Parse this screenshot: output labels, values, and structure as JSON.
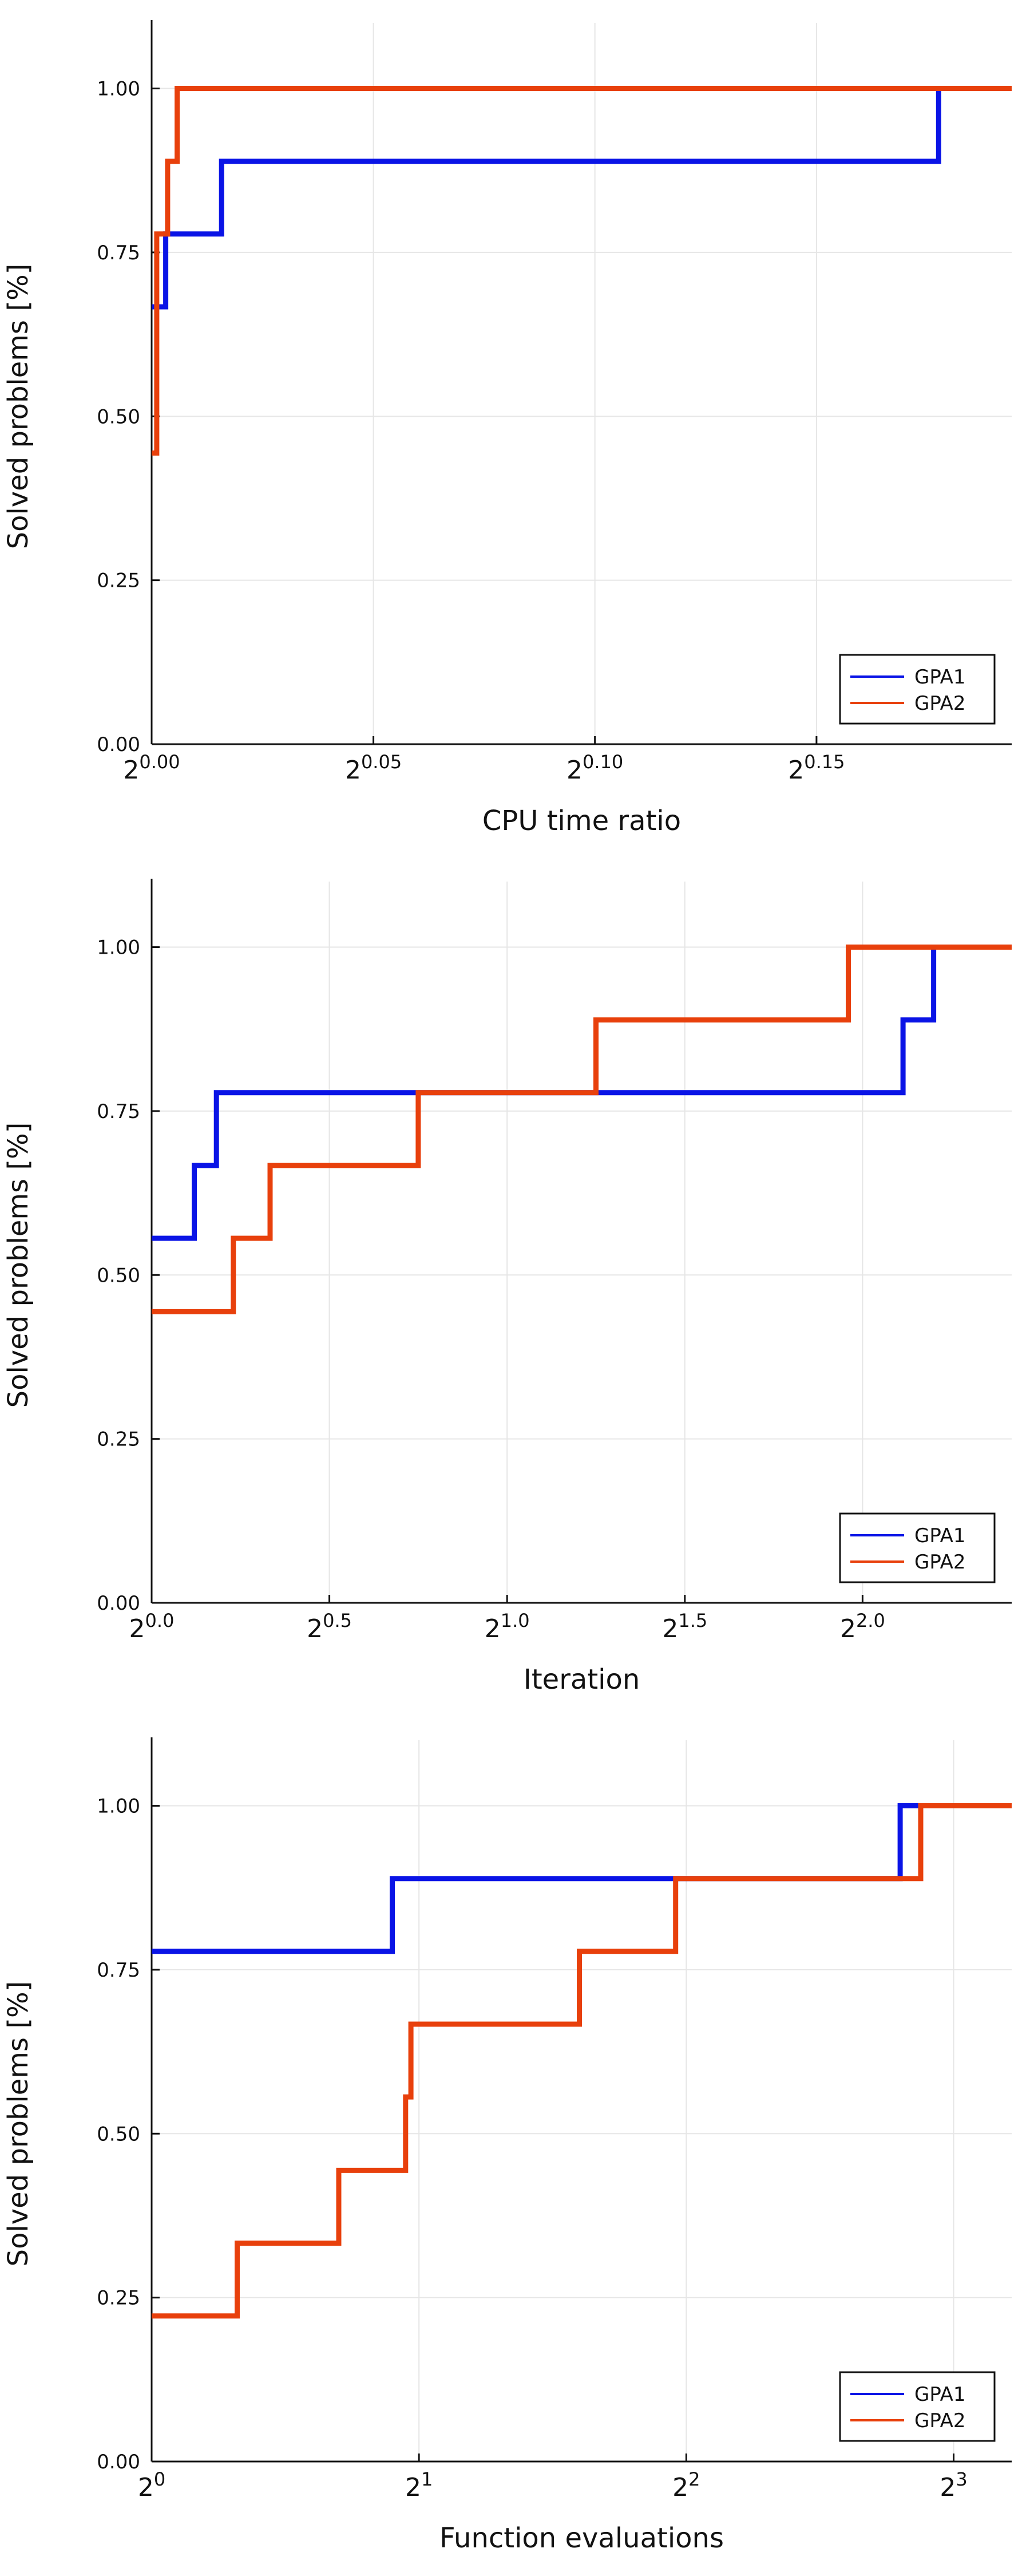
{
  "colors": {
    "GPA1": "#0a14e6",
    "GPA2": "#e8400c",
    "grid": "#e6e6e6",
    "axis": "#111111"
  },
  "chart_data": [
    {
      "type": "line",
      "step": true,
      "xlabel": "CPU time ratio",
      "ylabel": "Solved problems [%]",
      "x_scale": "log2",
      "xlim": [
        1.0,
        1.144
      ],
      "ylim": [
        0,
        1.1
      ],
      "xticks": [
        {
          "value": 1.0,
          "base": "2",
          "exp": "0.00"
        },
        {
          "value": 1.0353,
          "base": "2",
          "exp": "0.05"
        },
        {
          "value": 1.0718,
          "base": "2",
          "exp": "0.10"
        },
        {
          "value": 1.1096,
          "base": "2",
          "exp": "0.15"
        }
      ],
      "yticks": [
        "0.00",
        "0.25",
        "0.50",
        "0.75",
        "1.00"
      ],
      "ytick_values": [
        0,
        0.25,
        0.5,
        0.75,
        1.0
      ],
      "legend_position": "bottom-right",
      "series": [
        {
          "name": "GPA1",
          "x": [
            1.0,
            1.0022,
            1.0041,
            1.011,
            1.131,
            1.144
          ],
          "y": [
            0.667,
            0.778,
            0.778,
            0.889,
            1.0,
            1.0
          ]
        },
        {
          "name": "GPA2",
          "x": [
            1.0,
            1.0008,
            1.0025,
            1.004,
            1.005,
            1.144
          ],
          "y": [
            0.444,
            0.778,
            0.889,
            1.0,
            1.0,
            1.0
          ]
        }
      ]
    },
    {
      "type": "line",
      "step": true,
      "xlabel": "Iteration",
      "ylabel": "Solved problems [%]",
      "x_scale": "log2",
      "xlim": [
        1.0,
        5.35
      ],
      "ylim": [
        0,
        1.1
      ],
      "xticks": [
        {
          "value": 1.0,
          "base": "2",
          "exp": "0.0"
        },
        {
          "value": 1.4142,
          "base": "2",
          "exp": "0.5"
        },
        {
          "value": 2.0,
          "base": "2",
          "exp": "1.0"
        },
        {
          "value": 2.8284,
          "base": "2",
          "exp": "1.5"
        },
        {
          "value": 4.0,
          "base": "2",
          "exp": "2.0"
        }
      ],
      "yticks": [
        "0.00",
        "0.25",
        "0.50",
        "0.75",
        "1.00"
      ],
      "ytick_values": [
        0,
        0.25,
        0.5,
        0.75,
        1.0
      ],
      "legend_position": "bottom-right",
      "series": [
        {
          "name": "GPA1",
          "x": [
            1.0,
            1.0867,
            1.1346,
            4.3282,
            4.5948,
            5.35
          ],
          "y": [
            0.556,
            0.667,
            0.778,
            0.889,
            1.0,
            1.0
          ]
        },
        {
          "name": "GPA2",
          "x": [
            1.0,
            1.1728,
            1.2599,
            1.6818,
            2.3784,
            3.8906,
            5.35
          ],
          "y": [
            0.444,
            0.556,
            0.667,
            0.778,
            0.889,
            1.0,
            1.0
          ]
        }
      ]
    },
    {
      "type": "line",
      "step": true,
      "xlabel": "Function evaluations",
      "ylabel": "Solved problems [%]",
      "x_scale": "log2",
      "xlim": [
        1.0,
        9.3
      ],
      "ylim": [
        0,
        1.1
      ],
      "xticks": [
        {
          "value": 1,
          "base": "2",
          "exp": "0"
        },
        {
          "value": 2,
          "base": "2",
          "exp": "1"
        },
        {
          "value": 4,
          "base": "2",
          "exp": "2"
        },
        {
          "value": 8,
          "base": "2",
          "exp": "3"
        }
      ],
      "yticks": [
        "0.00",
        "0.25",
        "0.50",
        "0.75",
        "1.00"
      ],
      "ytick_values": [
        0,
        0.25,
        0.5,
        0.75,
        1.0
      ],
      "legend_position": "bottom-right",
      "series": [
        {
          "name": "GPA1",
          "x": [
            1.0,
            1.8661,
            6.9644,
            9.3
          ],
          "y": [
            0.778,
            0.889,
            1.0,
            1.0
          ]
        },
        {
          "name": "GPA2",
          "x": [
            1.0,
            1.2483,
            1.6245,
            1.9319,
            1.9588,
            3.0314,
            3.8906,
            7.3454,
            9.3
          ],
          "y": [
            0.222,
            0.333,
            0.444,
            0.556,
            0.667,
            0.778,
            0.889,
            1.0,
            1.0
          ]
        }
      ]
    }
  ]
}
